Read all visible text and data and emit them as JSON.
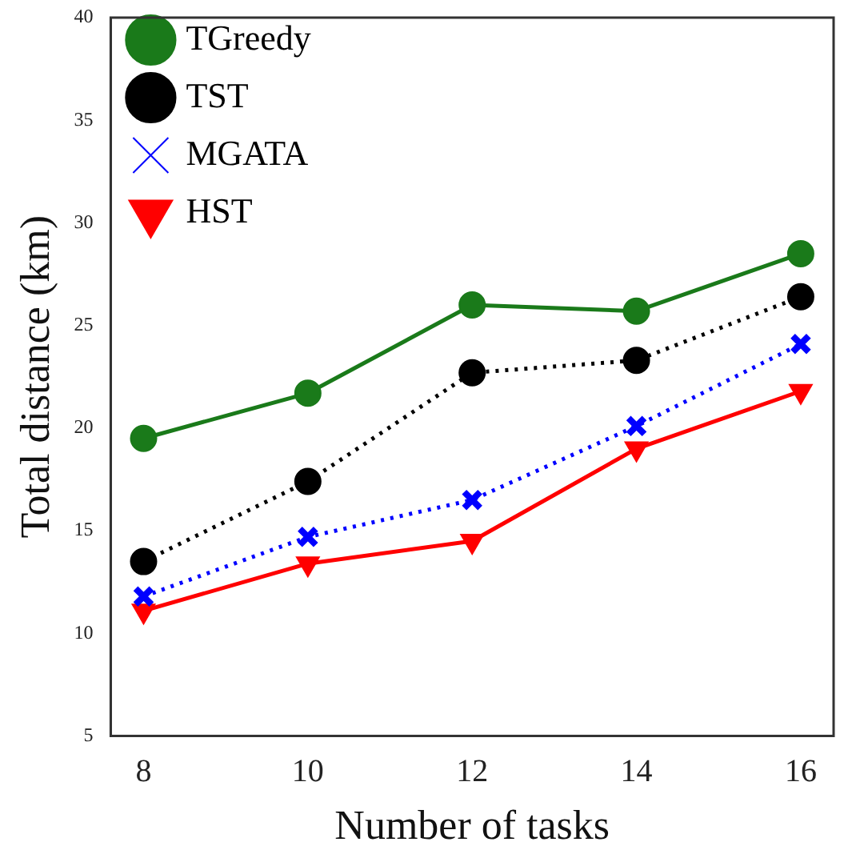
{
  "chart_data": {
    "type": "line",
    "xlabel": "Number of tasks",
    "ylabel": "Total distance (km)",
    "x": [
      8,
      10,
      12,
      14,
      16
    ],
    "xlim": [
      7.6,
      16.4
    ],
    "xticks": [
      8,
      10,
      12,
      14,
      16
    ],
    "ylim": [
      5,
      40
    ],
    "yticks": [
      5,
      10,
      15,
      20,
      25,
      30,
      35,
      40
    ],
    "grid": false,
    "legend": "top left",
    "series": [
      {
        "name": "TGreedy",
        "color": "#1a7a1a",
        "marker": "circle",
        "line_style": "solid",
        "values": [
          19.5,
          21.7,
          26.0,
          25.7,
          28.5
        ]
      },
      {
        "name": "TST",
        "color": "#000000",
        "marker": "circle",
        "line_style": "dotted",
        "values": [
          13.5,
          17.4,
          22.7,
          23.3,
          26.4
        ]
      },
      {
        "name": "MGATA",
        "color": "#0000ff",
        "marker": "cross",
        "line_style": "dotted",
        "values": [
          11.8,
          14.7,
          16.5,
          20.1,
          24.1
        ]
      },
      {
        "name": "HST",
        "color": "#ff0000",
        "marker": "triangle",
        "line_style": "solid",
        "values": [
          11.1,
          13.4,
          14.5,
          19.0,
          21.8
        ]
      }
    ]
  }
}
